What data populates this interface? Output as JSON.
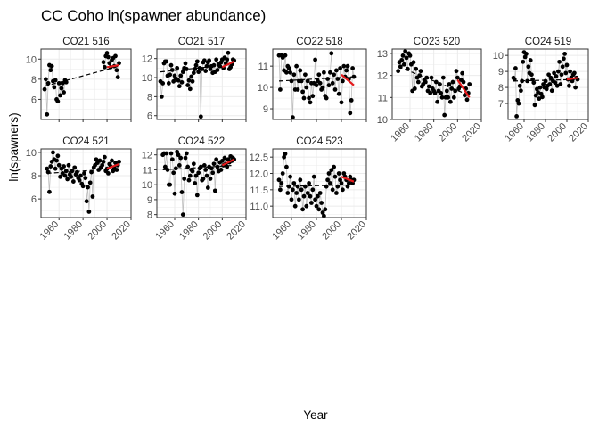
{
  "title": "CC Coho ln(spawner abundance)",
  "xlabel": "Year",
  "ylabel": "ln(spawners)",
  "colors": {
    "points": "#000000",
    "lines": "#bfbfbf",
    "trend": "#000000",
    "recent": "#e41a1c",
    "grid": "#ebebeb",
    "border": "#333333"
  },
  "chart_data": [
    {
      "type": "scatter",
      "panel": "CO21 516",
      "xlim": [
        1945,
        2020
      ],
      "ylim": [
        4.0,
        11.0
      ],
      "xticks": [
        1960,
        1980,
        2000,
        2020
      ],
      "yticks": [
        6,
        8,
        10
      ],
      "x": [
        1948,
        1949,
        1950,
        1951,
        1952,
        1953,
        1954,
        1955,
        1956,
        1957,
        1958,
        1959,
        1960,
        1961,
        1962,
        1963,
        1964,
        1965,
        1966,
        1997,
        1998,
        1999,
        2000,
        2001,
        2002,
        2003,
        2004,
        2005,
        2006,
        2007,
        2008,
        2009,
        2010
      ],
      "y": [
        7.0,
        8.0,
        4.5,
        7.6,
        9.4,
        8.9,
        9.3,
        7.8,
        7.2,
        7.9,
        6.0,
        5.8,
        7.6,
        6.4,
        7.1,
        7.6,
        6.7,
        7.9,
        7.7,
        9.7,
        9.2,
        10.3,
        10.6,
        10.2,
        9.6,
        9.2,
        9.9,
        10.1,
        9.3,
        10.3,
        8.9,
        8.2,
        9.6
      ],
      "trend": {
        "x": [
          1948,
          2010
        ],
        "y": [
          7.3,
          9.3
        ]
      },
      "recent_trend": {
        "x": [
          2000,
          2010
        ],
        "y": [
          9.2,
          9.4
        ]
      }
    },
    {
      "type": "scatter",
      "panel": "CO21 517",
      "xlim": [
        1945,
        2020
      ],
      "ylim": [
        5.6,
        13.0
      ],
      "xticks": [
        1960,
        1980,
        2000,
        2020
      ],
      "yticks": [
        6,
        8,
        10,
        12
      ],
      "x": [
        1948,
        1949,
        1950,
        1951,
        1952,
        1953,
        1954,
        1955,
        1956,
        1957,
        1958,
        1959,
        1960,
        1961,
        1962,
        1963,
        1964,
        1965,
        1966,
        1967,
        1968,
        1969,
        1970,
        1971,
        1972,
        1973,
        1974,
        1975,
        1976,
        1977,
        1978,
        1979,
        1980,
        1981,
        1982,
        1983,
        1984,
        1985,
        1986,
        1987,
        1988,
        1989,
        1990,
        1991,
        1992,
        1993,
        1994,
        1995,
        1996,
        1997,
        1998,
        1999,
        2000,
        2001,
        2002,
        2003,
        2004,
        2005,
        2006,
        2007,
        2008,
        2009,
        2010
      ],
      "y": [
        9.6,
        8.0,
        9.4,
        11.5,
        11.7,
        11.7,
        10.2,
        9.4,
        10.3,
        11.3,
        10.8,
        9.6,
        10.2,
        9.9,
        11.0,
        9.7,
        9.1,
        10.2,
        9.5,
        10.6,
        11.0,
        11.5,
        10.9,
        9.2,
        9.7,
        8.8,
        10.1,
        9.6,
        10.5,
        10.9,
        11.3,
        11.7,
        10.6,
        11.0,
        5.9,
        10.9,
        11.6,
        11.8,
        10.7,
        11.2,
        11.6,
        11.8,
        10.9,
        11.2,
        10.5,
        11.3,
        10.6,
        11.9,
        10.8,
        11.4,
        11.2,
        11.6,
        11.9,
        11.0,
        12.1,
        11.5,
        11.9,
        12.6,
        10.9,
        11.1,
        11.4,
        11.9,
        11.8
      ],
      "trend": {
        "x": [
          1948,
          2010
        ],
        "y": [
          10.6,
          11.4
        ]
      },
      "recent_trend": {
        "x": [
          2000,
          2010
        ],
        "y": [
          11.1,
          11.7
        ]
      }
    },
    {
      "type": "scatter",
      "panel": "CO22 518",
      "xlim": [
        1945,
        2020
      ],
      "ylim": [
        8.5,
        11.8
      ],
      "xticks": [
        1960,
        1980,
        2000,
        2020
      ],
      "yticks": [
        9,
        10,
        11
      ],
      "x": [
        1950,
        1951,
        1952,
        1953,
        1954,
        1955,
        1956,
        1957,
        1958,
        1959,
        1960,
        1961,
        1962,
        1963,
        1964,
        1965,
        1966,
        1967,
        1968,
        1969,
        1970,
        1971,
        1972,
        1973,
        1974,
        1975,
        1976,
        1977,
        1978,
        1979,
        1980,
        1981,
        1982,
        1983,
        1984,
        1985,
        1986,
        1987,
        1988,
        1989,
        1990,
        1991,
        1992,
        1993,
        1994,
        1995,
        1996,
        1997,
        1998,
        1999,
        2000,
        2001,
        2002,
        2003,
        2004,
        2005,
        2006,
        2007,
        2008,
        2009,
        2010
      ],
      "y": [
        11.5,
        9.9,
        11.5,
        11.4,
        10.8,
        11.5,
        10.7,
        11.0,
        10.9,
        10.7,
        10.3,
        8.6,
        10.6,
        9.9,
        11.0,
        9.9,
        10.3,
        10.8,
        10.3,
        9.8,
        9.5,
        10.6,
        10.0,
        10.3,
        9.5,
        9.3,
        10.2,
        9.6,
        10.2,
        11.3,
        10.1,
        10.3,
        10.6,
        10.2,
        9.9,
        10.0,
        10.7,
        9.6,
        9.5,
        10.4,
        10.1,
        10.7,
        11.6,
        10.2,
        10.6,
        9.9,
        10.8,
        10.4,
        9.7,
        10.9,
        9.3,
        10.3,
        11.0,
        10.5,
        10.8,
        11.0,
        10.4,
        8.8,
        9.4,
        10.9,
        10.5
      ],
      "trend": {
        "x": [
          1950,
          2010
        ],
        "y": [
          10.3,
          10.5
        ]
      },
      "recent_trend": {
        "x": [
          2000,
          2010
        ],
        "y": [
          10.6,
          10.1
        ]
      }
    },
    {
      "type": "scatter",
      "panel": "CO23 520",
      "xlim": [
        1945,
        2020
      ],
      "ylim": [
        10.0,
        13.2
      ],
      "xticks": [
        1960,
        1980,
        2000,
        2020
      ],
      "yticks": [
        10,
        11,
        12,
        13
      ],
      "x": [
        1950,
        1951,
        1952,
        1953,
        1954,
        1955,
        1956,
        1957,
        1958,
        1959,
        1960,
        1961,
        1962,
        1963,
        1964,
        1965,
        1966,
        1967,
        1968,
        1969,
        1970,
        1971,
        1972,
        1973,
        1974,
        1975,
        1976,
        1977,
        1978,
        1979,
        1980,
        1981,
        1982,
        1983,
        1984,
        1985,
        1986,
        1987,
        1988,
        1989,
        1990,
        1991,
        1992,
        1993,
        1994,
        1995,
        1996,
        1997,
        1998,
        1999,
        2000,
        2001,
        2002,
        2003,
        2004,
        2005,
        2006,
        2007,
        2008,
        2009,
        2010
      ],
      "y": [
        12.2,
        12.6,
        12.4,
        12.7,
        12.9,
        12.5,
        13.1,
        12.8,
        12.3,
        13.0,
        12.9,
        12.5,
        11.3,
        12.6,
        11.4,
        12.3,
        11.9,
        11.7,
        12.0,
        12.2,
        11.5,
        11.6,
        11.8,
        11.7,
        11.9,
        11.3,
        11.5,
        11.2,
        11.9,
        11.4,
        11.3,
        11.2,
        11.7,
        10.8,
        11.3,
        11.6,
        11.2,
        11.0,
        11.9,
        10.2,
        11.0,
        11.3,
        11.0,
        11.6,
        10.8,
        11.4,
        11.7,
        11.0,
        11.3,
        12.2,
        11.9,
        11.4,
        11.5,
        11.8,
        12.1,
        11.7,
        11.1,
        11.4,
        10.9,
        11.2,
        11.6
      ],
      "trend": {
        "x": [
          1950,
          2010
        ],
        "y": [
          12.4,
          11.1
        ]
      },
      "recent_trend": {
        "x": [
          2000,
          2010
        ],
        "y": [
          11.8,
          11.0
        ]
      }
    },
    {
      "type": "scatter",
      "panel": "CO24 519",
      "xlim": [
        1945,
        2020
      ],
      "ylim": [
        6.0,
        10.4
      ],
      "xticks": [
        1960,
        1980,
        2000,
        2020
      ],
      "yticks": [
        7,
        8,
        9,
        10
      ],
      "x": [
        1950,
        1951,
        1952,
        1953,
        1954,
        1955,
        1956,
        1957,
        1958,
        1959,
        1960,
        1961,
        1962,
        1963,
        1964,
        1965,
        1966,
        1967,
        1968,
        1969,
        1970,
        1971,
        1972,
        1973,
        1974,
        1975,
        1976,
        1977,
        1978,
        1979,
        1980,
        1981,
        1982,
        1983,
        1984,
        1985,
        1986,
        1987,
        1988,
        1989,
        1990,
        1991,
        1992,
        1993,
        1994,
        1995,
        1996,
        1997,
        1998,
        1999,
        2000,
        2001,
        2002,
        2003,
        2004,
        2005,
        2006,
        2007,
        2008,
        2009,
        2010
      ],
      "y": [
        8.6,
        8.5,
        9.2,
        6.2,
        7.2,
        7.0,
        8.1,
        7.8,
        8.4,
        9.6,
        10.2,
        9.9,
        10.1,
        8.4,
        9.3,
        8.9,
        9.7,
        8.8,
        8.5,
        8.3,
        6.9,
        7.5,
        7.9,
        7.7,
        7.3,
        8.0,
        7.6,
        7.4,
        8.2,
        8.0,
        8.4,
        7.9,
        8.1,
        8.8,
        8.2,
        8.6,
        7.8,
        8.4,
        8.9,
        8.3,
        8.7,
        8.1,
        9.0,
        9.6,
        8.2,
        8.8,
        9.3,
        9.8,
        10.1,
        8.9,
        9.4,
        8.5,
        8.1,
        9.0,
        8.6,
        8.4,
        8.8,
        8.9,
        8.0,
        8.6,
        8.5
      ],
      "trend": {
        "x": [
          1950,
          2010
        ],
        "y": [
          8.4,
          8.5
        ]
      },
      "recent_trend": {
        "x": [
          2000,
          2010
        ],
        "y": [
          8.5,
          8.6
        ]
      }
    },
    {
      "type": "scatter",
      "panel": "CO24 521",
      "xlim": [
        1945,
        2020
      ],
      "ylim": [
        4.4,
        10.3
      ],
      "xticks": [
        1960,
        1980,
        2000,
        2020
      ],
      "yticks": [
        6,
        8,
        10
      ],
      "x": [
        1950,
        1951,
        1952,
        1953,
        1954,
        1955,
        1956,
        1957,
        1958,
        1959,
        1960,
        1961,
        1962,
        1963,
        1964,
        1965,
        1966,
        1967,
        1968,
        1969,
        1970,
        1971,
        1972,
        1973,
        1974,
        1975,
        1976,
        1977,
        1978,
        1979,
        1980,
        1981,
        1982,
        1983,
        1984,
        1985,
        1986,
        1987,
        1988,
        1989,
        1990,
        1991,
        1992,
        1993,
        1994,
        1995,
        1996,
        1997,
        1998,
        1999,
        2000,
        2001,
        2002,
        2003,
        2004,
        2005,
        2006,
        2007,
        2008,
        2009,
        2010
      ],
      "y": [
        8.6,
        8.3,
        6.6,
        8.8,
        9.2,
        10.0,
        9.4,
        8.6,
        9.3,
        9.7,
        8.9,
        7.9,
        8.6,
        8.2,
        8.8,
        8.0,
        8.4,
        7.7,
        8.9,
        8.1,
        7.9,
        8.4,
        7.5,
        8.7,
        8.1,
        8.3,
        7.8,
        7.6,
        8.0,
        7.3,
        7.1,
        8.2,
        7.8,
        5.8,
        7.0,
        4.9,
        7.4,
        8.3,
        6.2,
        8.7,
        8.9,
        9.4,
        9.1,
        8.5,
        9.3,
        8.7,
        8.9,
        9.2,
        9.6,
        8.4,
        8.6,
        8.2,
        9.0,
        8.8,
        9.3,
        8.4,
        8.7,
        9.1,
        8.5,
        8.9,
        9.2
      ],
      "trend": {
        "x": [
          1950,
          2010
        ],
        "y": [
          8.2,
          8.6
        ]
      },
      "recent_trend": {
        "x": [
          2000,
          2010
        ],
        "y": [
          8.6,
          9.0
        ]
      }
    },
    {
      "type": "scatter",
      "panel": "CO24 522",
      "xlim": [
        1945,
        2020
      ],
      "ylim": [
        7.8,
        12.4
      ],
      "xticks": [
        1960,
        1980,
        2000,
        2020
      ],
      "yticks": [
        8,
        9,
        10,
        11,
        12
      ],
      "x": [
        1950,
        1951,
        1952,
        1953,
        1954,
        1955,
        1956,
        1957,
        1958,
        1959,
        1960,
        1961,
        1962,
        1963,
        1964,
        1965,
        1966,
        1967,
        1968,
        1969,
        1970,
        1971,
        1972,
        1973,
        1974,
        1975,
        1976,
        1977,
        1978,
        1979,
        1980,
        1981,
        1982,
        1983,
        1984,
        1985,
        1986,
        1987,
        1988,
        1989,
        1990,
        1991,
        1992,
        1993,
        1994,
        1995,
        1996,
        1997,
        1998,
        1999,
        2000,
        2001,
        2002,
        2003,
        2004,
        2005,
        2006,
        2007,
        2008,
        2009,
        2010
      ],
      "y": [
        12.0,
        12.1,
        11.2,
        12.1,
        11.0,
        10.0,
        10.0,
        12.1,
        11.7,
        10.8,
        9.4,
        11.1,
        12.2,
        12.0,
        11.3,
        11.8,
        9.5,
        8.0,
        10.4,
        11.8,
        12.1,
        11.2,
        10.3,
        10.6,
        11.0,
        10.9,
        11.4,
        10.1,
        10.6,
        9.3,
        10.8,
        11.1,
        11.2,
        10.3,
        10.4,
        11.3,
        11.0,
        10.6,
        9.8,
        11.2,
        10.4,
        11.1,
        10.8,
        11.4,
        9.6,
        11.7,
        11.2,
        10.9,
        11.5,
        11.0,
        11.6,
        11.3,
        11.8,
        11.4,
        11.2,
        11.7,
        11.5,
        11.9,
        11.6,
        11.8,
        11.7
      ],
      "trend": {
        "x": [
          1950,
          2010
        ],
        "y": [
          11.0,
          11.3
        ]
      },
      "recent_trend": {
        "x": [
          2000,
          2010
        ],
        "y": [
          11.3,
          11.7
        ]
      }
    },
    {
      "type": "scatter",
      "panel": "CO24 523",
      "xlim": [
        1945,
        2020
      ],
      "ylim": [
        10.65,
        12.75
      ],
      "xticks": [
        1960,
        1980,
        2000,
        2020
      ],
      "yticks": [
        11.0,
        11.5,
        12.0,
        12.5
      ],
      "x": [
        1950,
        1951,
        1952,
        1953,
        1954,
        1955,
        1956,
        1957,
        1958,
        1959,
        1960,
        1961,
        1962,
        1963,
        1964,
        1965,
        1966,
        1967,
        1968,
        1969,
        1970,
        1971,
        1972,
        1973,
        1974,
        1975,
        1976,
        1977,
        1978,
        1979,
        1980,
        1981,
        1982,
        1983,
        1984,
        1985,
        1986,
        1987,
        1988,
        1989,
        1990,
        1991,
        1992,
        1993,
        1994,
        1995,
        1996,
        1997,
        1998,
        1999,
        2000,
        2001,
        2002,
        2003,
        2004,
        2005,
        2006,
        2007,
        2008,
        2009,
        2010
      ],
      "y": [
        11.8,
        11.5,
        11.7,
        12.0,
        12.5,
        12.6,
        12.2,
        11.4,
        11.6,
        11.9,
        11.2,
        11.5,
        11.7,
        11.0,
        11.4,
        11.6,
        11.2,
        11.8,
        11.5,
        10.9,
        11.3,
        11.6,
        11.0,
        11.4,
        11.7,
        11.3,
        11.1,
        11.5,
        11.9,
        11.2,
        11.0,
        11.3,
        10.9,
        11.4,
        11.1,
        10.8,
        10.7,
        10.9,
        11.6,
        11.8,
        12.0,
        11.7,
        12.1,
        11.5,
        12.2,
        11.9,
        11.4,
        11.6,
        12.0,
        11.8,
        11.7,
        11.5,
        12.0,
        11.9,
        11.8,
        11.6,
        11.7,
        11.9,
        11.8,
        11.7,
        11.8
      ],
      "trend": {
        "x": [
          1950,
          2010
        ],
        "y": [
          11.6,
          11.65
        ]
      },
      "recent_trend": {
        "x": [
          2000,
          2010
        ],
        "y": [
          11.9,
          11.75
        ]
      }
    }
  ]
}
